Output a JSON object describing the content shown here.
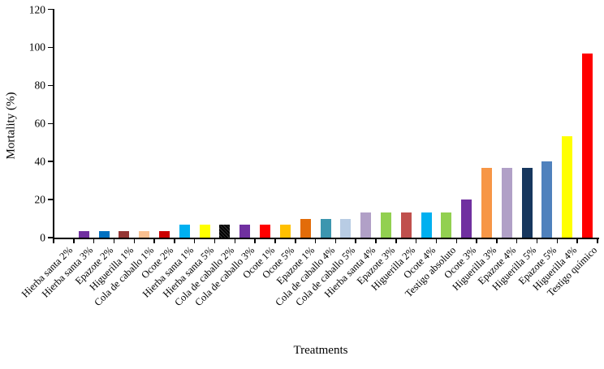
{
  "chart_data": {
    "type": "bar",
    "title": "",
    "xlabel": "Treatments",
    "ylabel": "Mortality (%)",
    "ylim": [
      0,
      120
    ],
    "yticks": [
      0,
      20,
      40,
      60,
      80,
      100,
      120
    ],
    "grid": false,
    "legend": false,
    "background_color": "#FFFFFF",
    "axis_color": "#000000",
    "categories": [
      "Hierba santa 2%",
      "Hierba santa 3%",
      "Epazote 2%",
      "Higuerilla 1%",
      "Cola de caballo 1%",
      "Ocote 2%",
      "Hierba santa 1%",
      "Hierba santa 5%",
      "Cola de caballo 2%",
      "Cola de caballo 3%",
      "Ocote 1%",
      "Ocote 5%",
      "Epazote 1%",
      "Cola de caballo 4%",
      "Cola de caballo 5%",
      "Hierba santa 4%",
      "Epazote 3%",
      "Higuerilla 2%",
      "Ocote 4%",
      "Testigo absoluto",
      "Ocote 3%",
      "Higuerilla 3%",
      "Epazote 4%",
      "Higuerilla 5%",
      "Epazote 5%",
      "Higuerilla 4%",
      "Testigo químico"
    ],
    "values": [
      0,
      3.3,
      3.3,
      3.3,
      3.3,
      3.3,
      6.7,
      6.7,
      6.7,
      6.7,
      6.7,
      6.7,
      10,
      10,
      10,
      13.3,
      13.3,
      13.3,
      13.3,
      13.3,
      20,
      36.7,
      36.7,
      36.7,
      40,
      53.3,
      96.7
    ],
    "bar_colors": [
      null,
      "#7030A0",
      "#0070C0",
      "#943634",
      "#FAC090",
      "#CC0000",
      "#00B0F0",
      "#FFFF00",
      "#000000",
      "#7030A0",
      "#FF0000",
      "#FFC000",
      "#E36C09",
      "#3C96AF",
      "#B8CCE4",
      "#B1A0C7",
      "#92D050",
      "#C0504D",
      "#00B0F0",
      "#92D050",
      "#7030A0",
      "#F79646",
      "#B1A0C7",
      "#17375E",
      "#4F81BD",
      "#FFFF00",
      "#FF0000"
    ],
    "bar_patterns": {
      "8": "diagonal-hatch"
    }
  }
}
